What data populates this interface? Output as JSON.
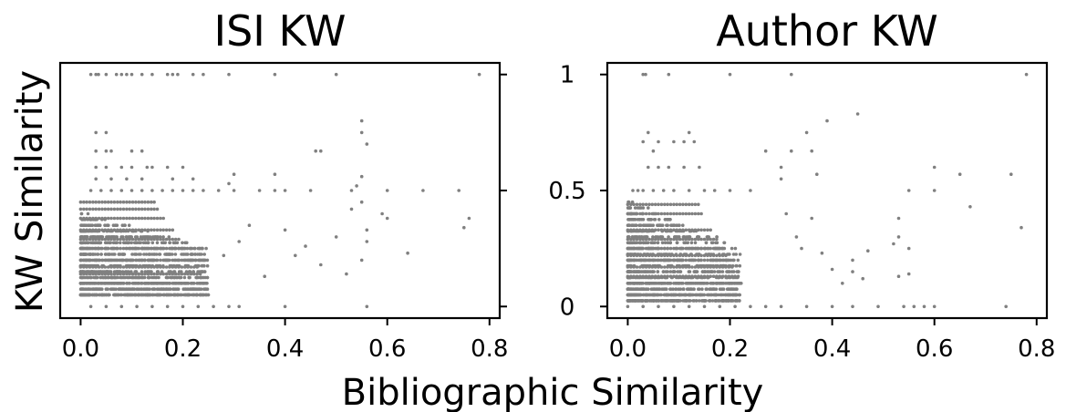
{
  "figure": {
    "xlabel": "Bibliographic Similarity",
    "ylabel": "KW Similarity"
  },
  "chart_data": [
    {
      "type": "scatter",
      "title": "ISI KW",
      "xlim": [
        -0.04,
        0.82
      ],
      "ylim": [
        -0.05,
        1.05
      ],
      "xticks": [
        "0.0",
        "0.2",
        "0.4",
        "0.6",
        "0.8"
      ],
      "yticks": [
        "0",
        "0.5",
        "1"
      ],
      "ytick_labels_shown": false,
      "ytick_side": "right",
      "grid": false,
      "legend": "none",
      "color": "#808080",
      "series": [
        {
          "points": [
            [
              0.02,
              1
            ],
            [
              0.03,
              1
            ],
            [
              0.035,
              1
            ],
            [
              0.05,
              1
            ],
            [
              0.07,
              1
            ],
            [
              0.08,
              1
            ],
            [
              0.09,
              1
            ],
            [
              0.1,
              1
            ],
            [
              0.12,
              1
            ],
            [
              0.14,
              1
            ],
            [
              0.17,
              1
            ],
            [
              0.18,
              1
            ],
            [
              0.19,
              1
            ],
            [
              0.22,
              1
            ],
            [
              0.24,
              1
            ],
            [
              0.29,
              1
            ],
            [
              0.38,
              1
            ],
            [
              0.5,
              1
            ],
            [
              0.78,
              1
            ],
            [
              0.55,
              0.8
            ],
            [
              0.55,
              0.75
            ],
            [
              0.56,
              0.7
            ],
            [
              0.03,
              0.75
            ],
            [
              0.05,
              0.75
            ],
            [
              0.03,
              0.67
            ],
            [
              0.05,
              0.67
            ],
            [
              0.06,
              0.67
            ],
            [
              0.1,
              0.67
            ],
            [
              0.12,
              0.67
            ],
            [
              0.46,
              0.67
            ],
            [
              0.47,
              0.67
            ],
            [
              0.03,
              0.6
            ],
            [
              0.05,
              0.6
            ],
            [
              0.08,
              0.6
            ],
            [
              0.1,
              0.6
            ],
            [
              0.13,
              0.6
            ],
            [
              0.14,
              0.6
            ],
            [
              0.17,
              0.6
            ],
            [
              0.2,
              0.6
            ],
            [
              0.3,
              0.57
            ],
            [
              0.38,
              0.57
            ],
            [
              0.03,
              0.55
            ],
            [
              0.06,
              0.55
            ],
            [
              0.09,
              0.55
            ],
            [
              0.12,
              0.55
            ],
            [
              0.18,
              0.55
            ],
            [
              0.22,
              0.55
            ],
            [
              0.55,
              0.56
            ],
            [
              0.29,
              0.53
            ],
            [
              0.54,
              0.52
            ],
            [
              0.02,
              0.5
            ],
            [
              0.04,
              0.5
            ],
            [
              0.06,
              0.5
            ],
            [
              0.08,
              0.5
            ],
            [
              0.1,
              0.5
            ],
            [
              0.12,
              0.5
            ],
            [
              0.14,
              0.5
            ],
            [
              0.16,
              0.5
            ],
            [
              0.18,
              0.5
            ],
            [
              0.2,
              0.5
            ],
            [
              0.22,
              0.5
            ],
            [
              0.24,
              0.5
            ],
            [
              0.27,
              0.5
            ],
            [
              0.3,
              0.5
            ],
            [
              0.35,
              0.5
            ],
            [
              0.38,
              0.5
            ],
            [
              0.4,
              0.5
            ],
            [
              0.45,
              0.5
            ],
            [
              0.53,
              0.5
            ],
            [
              0.6,
              0.5
            ],
            [
              0.67,
              0.5
            ],
            [
              0.74,
              0.5
            ],
            [
              0.55,
              0.45
            ],
            [
              0.53,
              0.42
            ],
            [
              0.59,
              0.4
            ],
            [
              0.6,
              0.38
            ],
            [
              0.76,
              0.38
            ],
            [
              0.75,
              0.34
            ],
            [
              0.56,
              0.33
            ],
            [
              0.5,
              0.3
            ],
            [
              0.56,
              0.28
            ],
            [
              0.64,
              0.23
            ],
            [
              0.44,
              0.26
            ],
            [
              0.42,
              0.22
            ],
            [
              0.55,
              0.2
            ],
            [
              0.52,
              0.14
            ],
            [
              0.47,
              0.18
            ],
            [
              0.36,
              0.13
            ],
            [
              0.4,
              0.33
            ],
            [
              0.33,
              0.35
            ],
            [
              0.31,
              0.28
            ],
            [
              0.28,
              0.22
            ],
            [
              0.02,
              0.0
            ],
            [
              0.05,
              0.0
            ],
            [
              0.08,
              0.0
            ],
            [
              0.11,
              0.0
            ],
            [
              0.14,
              0.0
            ],
            [
              0.17,
              0.0
            ],
            [
              0.2,
              0.0
            ],
            [
              0.23,
              0.0
            ],
            [
              0.26,
              0.0
            ],
            [
              0.29,
              0.0
            ],
            [
              0.31,
              0.0
            ],
            [
              0.4,
              0.0
            ],
            [
              0.56,
              0.0
            ]
          ]
        }
      ]
    },
    {
      "type": "scatter",
      "title": "Author KW",
      "xlim": [
        -0.04,
        0.82
      ],
      "ylim": [
        -0.05,
        1.05
      ],
      "xticks": [
        "0.0",
        "0.2",
        "0.4",
        "0.6",
        "0.8"
      ],
      "yticks": [
        "0",
        "0.5",
        "1"
      ],
      "ytick_labels_shown": true,
      "ytick_side": "left",
      "grid": false,
      "legend": "none",
      "color": "#808080",
      "series": [
        {
          "points": [
            [
              0.03,
              1
            ],
            [
              0.035,
              1
            ],
            [
              0.08,
              1
            ],
            [
              0.2,
              1
            ],
            [
              0.32,
              1
            ],
            [
              0.78,
              1
            ],
            [
              0.45,
              0.83
            ],
            [
              0.39,
              0.8
            ],
            [
              0.12,
              0.75
            ],
            [
              0.35,
              0.75
            ],
            [
              0.04,
              0.75
            ],
            [
              0.03,
              0.71
            ],
            [
              0.06,
              0.71
            ],
            [
              0.09,
              0.71
            ],
            [
              0.11,
              0.71
            ],
            [
              0.13,
              0.71
            ],
            [
              0.05,
              0.67
            ],
            [
              0.27,
              0.67
            ],
            [
              0.32,
              0.67
            ],
            [
              0.36,
              0.67
            ],
            [
              0.04,
              0.6
            ],
            [
              0.06,
              0.6
            ],
            [
              0.08,
              0.6
            ],
            [
              0.11,
              0.6
            ],
            [
              0.14,
              0.6
            ],
            [
              0.3,
              0.6
            ],
            [
              0.6,
              0.6
            ],
            [
              0.65,
              0.57
            ],
            [
              0.75,
              0.57
            ],
            [
              0.37,
              0.57
            ],
            [
              0.3,
              0.55
            ],
            [
              0.01,
              0.5
            ],
            [
              0.02,
              0.5
            ],
            [
              0.03,
              0.5
            ],
            [
              0.05,
              0.5
            ],
            [
              0.07,
              0.5
            ],
            [
              0.09,
              0.5
            ],
            [
              0.12,
              0.5
            ],
            [
              0.15,
              0.5
            ],
            [
              0.17,
              0.5
            ],
            [
              0.2,
              0.5
            ],
            [
              0.24,
              0.5
            ],
            [
              0.55,
              0.5
            ],
            [
              0.6,
              0.5
            ],
            [
              0.67,
              0.43
            ],
            [
              0.53,
              0.38
            ],
            [
              0.77,
              0.34
            ],
            [
              0.53,
              0.3
            ],
            [
              0.55,
              0.25
            ],
            [
              0.52,
              0.27
            ],
            [
              0.47,
              0.24
            ],
            [
              0.44,
              0.2
            ],
            [
              0.44,
              0.15
            ],
            [
              0.53,
              0.13
            ],
            [
              0.55,
              0.14
            ],
            [
              0.46,
              0.12
            ],
            [
              0.42,
              0.1
            ],
            [
              0.4,
              0.16
            ],
            [
              0.38,
              0.23
            ],
            [
              0.34,
              0.25
            ],
            [
              0.33,
              0.3
            ],
            [
              0.36,
              0.38
            ],
            [
              0.31,
              0.4
            ],
            [
              0.0,
              0.0
            ],
            [
              0.03,
              0.0
            ],
            [
              0.06,
              0.0
            ],
            [
              0.09,
              0.0
            ],
            [
              0.12,
              0.0
            ],
            [
              0.15,
              0.0
            ],
            [
              0.18,
              0.0
            ],
            [
              0.21,
              0.0
            ],
            [
              0.24,
              0.0
            ],
            [
              0.27,
              0.0
            ],
            [
              0.3,
              0.0
            ],
            [
              0.35,
              0.0
            ],
            [
              0.4,
              0.0
            ],
            [
              0.44,
              0.0
            ],
            [
              0.49,
              0.0
            ],
            [
              0.54,
              0.0
            ],
            [
              0.56,
              0.0
            ],
            [
              0.58,
              0.0
            ],
            [
              0.6,
              0.0
            ],
            [
              0.74,
              0.0
            ]
          ]
        }
      ]
    }
  ]
}
